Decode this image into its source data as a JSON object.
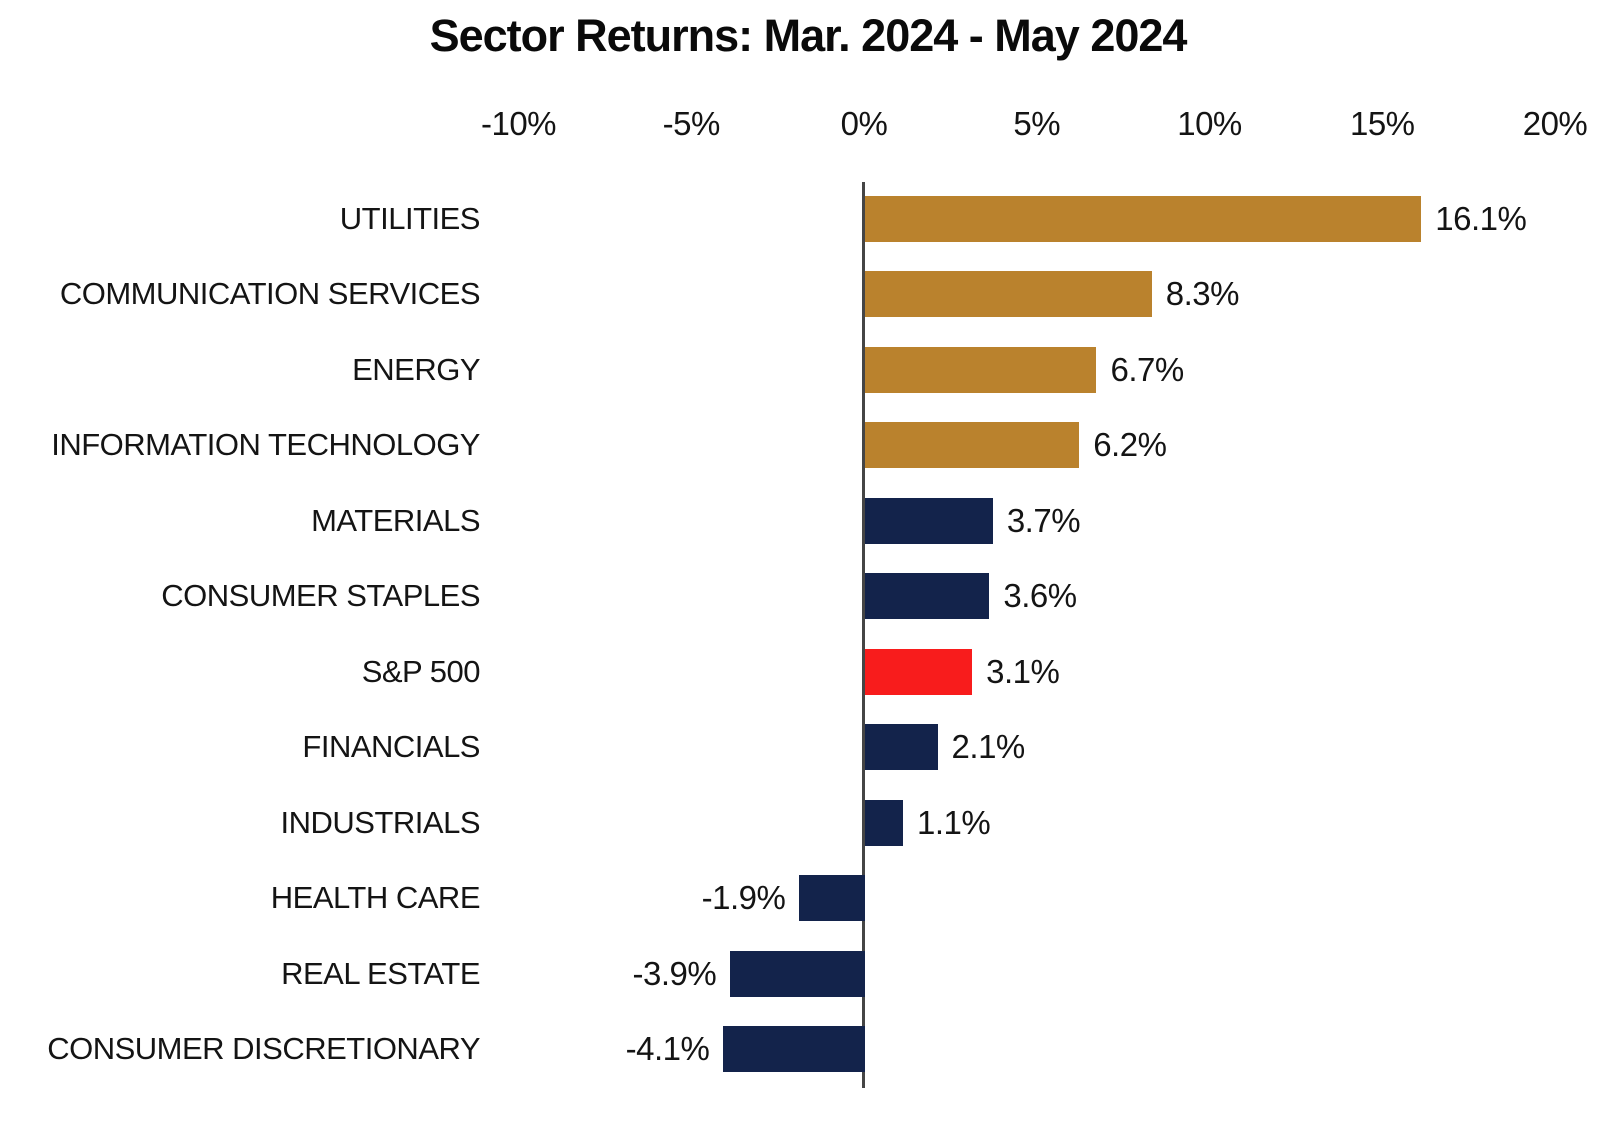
{
  "chart_data": {
    "type": "bar",
    "orientation": "horizontal",
    "title": "Sector Returns: Mar. 2024 - May 2024",
    "x_tick_labels": [
      "-10%",
      "-5%",
      "0%",
      "5%",
      "10%",
      "15%",
      "20%"
    ],
    "x_tick_values": [
      -10,
      -5,
      0,
      5,
      10,
      15,
      20
    ],
    "xlim": [
      -10,
      20
    ],
    "grid": false,
    "legend": null,
    "categories": [
      "UTILITIES",
      "COMMUNICATION SERVICES",
      "ENERGY",
      "INFORMATION TECHNOLOGY",
      "MATERIALS",
      "CONSUMER STAPLES",
      "S&P 500",
      "FINANCIALS",
      "INDUSTRIALS",
      "HEALTH CARE",
      "REAL ESTATE",
      "CONSUMER DISCRETIONARY"
    ],
    "values": [
      16.1,
      8.3,
      6.7,
      6.2,
      3.7,
      3.6,
      3.1,
      2.1,
      1.1,
      -1.9,
      -3.9,
      -4.1
    ],
    "value_labels": [
      "16.1%",
      "8.3%",
      "6.7%",
      "6.2%",
      "3.7%",
      "3.6%",
      "3.1%",
      "2.1%",
      "1.1%",
      "-1.9%",
      "-3.9%",
      "-4.1%"
    ],
    "bar_color_keys": [
      "gold",
      "gold",
      "gold",
      "gold",
      "navy",
      "navy",
      "red",
      "navy",
      "navy",
      "navy",
      "navy",
      "navy"
    ],
    "colors": {
      "gold": "#BA822D",
      "navy": "#13234B",
      "red": "#F81C1C",
      "axis": "#454545",
      "text": "#141414"
    }
  }
}
